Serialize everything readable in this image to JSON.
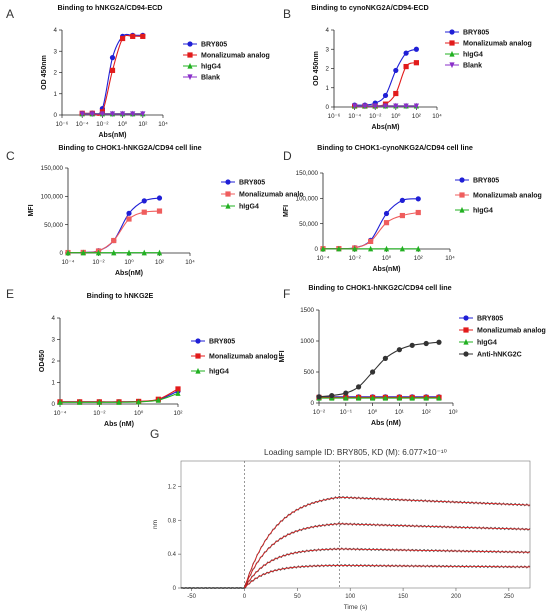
{
  "chart_data": [
    {
      "panel": "A",
      "type": "line",
      "title": "Binding to hNKG2A/CD94-ECD",
      "xlabel": "Abs(nM)",
      "ylabel": "OD 450nm",
      "x_scale": "log",
      "x_ticks": [
        "10⁻⁶",
        "10⁻⁴",
        "10⁻²",
        "10⁰",
        "10²",
        "10⁴"
      ],
      "y_ticks": [
        "0",
        "1",
        "2",
        "3",
        "4"
      ],
      "xlim": [
        1e-06,
        10000
      ],
      "ylim": [
        0,
        4
      ],
      "legend": "right",
      "series": [
        {
          "name": "BRY805",
          "color": "#1f1fd6",
          "marker": "circle",
          "x": [
            0.0001,
            0.001,
            0.01,
            0.1,
            1,
            10,
            100
          ],
          "y": [
            0.08,
            0.09,
            0.3,
            2.7,
            3.7,
            3.75,
            3.75
          ]
        },
        {
          "name": "Monalizumab analog",
          "color": "#e21b1b",
          "marker": "square",
          "x": [
            0.0001,
            0.001,
            0.01,
            0.1,
            1,
            10,
            100
          ],
          "y": [
            0.08,
            0.08,
            0.15,
            2.1,
            3.6,
            3.7,
            3.7
          ]
        },
        {
          "name": "hIgG4",
          "color": "#22b022",
          "marker": "triangle",
          "x": [
            0.0001,
            0.001,
            0.01,
            0.1,
            1,
            10,
            100
          ],
          "y": [
            0.06,
            0.06,
            0.06,
            0.06,
            0.06,
            0.06,
            0.06
          ]
        },
        {
          "name": "Blank",
          "color": "#8a2fc9",
          "marker": "triangle-down",
          "x": [
            0.0001,
            0.001,
            0.01,
            0.1,
            1,
            10,
            100
          ],
          "y": [
            0.05,
            0.05,
            0.05,
            0.05,
            0.05,
            0.05,
            0.05
          ]
        }
      ]
    },
    {
      "panel": "B",
      "type": "line",
      "title": "Binding to cynoNKG2A/CD94-ECD",
      "xlabel": "Abs(nM)",
      "ylabel": "OD 450nm",
      "x_scale": "log",
      "x_ticks": [
        "10⁻⁶",
        "10⁻⁴",
        "10⁻²",
        "10⁰",
        "10²",
        "10⁴"
      ],
      "y_ticks": [
        "0",
        "1",
        "2",
        "3",
        "4"
      ],
      "xlim": [
        1e-06,
        10000
      ],
      "ylim": [
        0,
        4
      ],
      "legend": "right",
      "series": [
        {
          "name": "BRY805",
          "color": "#1f1fd6",
          "marker": "circle",
          "x": [
            0.0001,
            0.001,
            0.01,
            0.1,
            1,
            10,
            100
          ],
          "y": [
            0.1,
            0.1,
            0.2,
            0.6,
            1.9,
            2.8,
            3.0
          ]
        },
        {
          "name": "Monalizumab analog",
          "color": "#e21b1b",
          "marker": "square",
          "x": [
            0.0001,
            0.001,
            0.01,
            0.1,
            1,
            10,
            100
          ],
          "y": [
            0.05,
            0.05,
            0.05,
            0.15,
            0.7,
            2.1,
            2.3
          ]
        },
        {
          "name": "hIgG4",
          "color": "#22b022",
          "marker": "triangle",
          "x": [
            0.0001,
            0.001,
            0.01,
            0.1,
            1,
            10,
            100
          ],
          "y": [
            0.06,
            0.06,
            0.06,
            0.06,
            0.06,
            0.06,
            0.06
          ]
        },
        {
          "name": "Blank",
          "color": "#8a2fc9",
          "marker": "triangle-down",
          "x": [
            0.0001,
            0.001,
            0.01,
            0.1,
            1,
            10,
            100
          ],
          "y": [
            0.05,
            0.05,
            0.05,
            0.05,
            0.05,
            0.05,
            0.05
          ]
        }
      ]
    },
    {
      "panel": "C",
      "type": "line",
      "title": "Binding to CHOK1-hNKG2A/CD94 cell line",
      "xlabel": "Abs(nM)",
      "ylabel": "MFI",
      "x_scale": "log",
      "x_ticks": [
        "10⁻⁴",
        "10⁻²",
        "10⁰",
        "10²",
        "10⁴"
      ],
      "y_ticks": [
        "0",
        "50,000",
        "100,000",
        "150,000"
      ],
      "xlim": [
        0.0001,
        10000
      ],
      "ylim": [
        0,
        150000
      ],
      "legend": "right",
      "series": [
        {
          "name": "BRY805",
          "color": "#1f1fd6",
          "marker": "circle",
          "x": [
            0.0001,
            0.001,
            0.01,
            0.1,
            1,
            10,
            100
          ],
          "y": [
            800,
            1000,
            4000,
            22000,
            70000,
            92000,
            97000
          ]
        },
        {
          "name": "Monalizumab analo",
          "color": "#ef5d5d",
          "marker": "square",
          "x": [
            0.0001,
            0.001,
            0.01,
            0.1,
            1,
            10,
            100
          ],
          "y": [
            800,
            1000,
            3500,
            22000,
            60000,
            72000,
            74000
          ]
        },
        {
          "name": "hIgG4",
          "color": "#22b022",
          "marker": "triangle",
          "x": [
            0.0001,
            0.001,
            0.01,
            0.1,
            1,
            10,
            100
          ],
          "y": [
            500,
            500,
            500,
            500,
            500,
            500,
            500
          ]
        }
      ]
    },
    {
      "panel": "D",
      "type": "line",
      "title": "Binding  to CHOK1-cynoNKG2A/CD94 cell line",
      "xlabel": "Abs(nM)",
      "ylabel": "MFI",
      "x_scale": "log",
      "x_ticks": [
        "10⁻⁴",
        "10⁻²",
        "10⁰",
        "10²",
        "10⁴"
      ],
      "y_ticks": [
        "0",
        "50,000",
        "100,000",
        "150,000"
      ],
      "xlim": [
        0.0001,
        10000
      ],
      "ylim": [
        0,
        150000
      ],
      "legend": "right",
      "series": [
        {
          "name": "BRY805",
          "color": "#1f1fd6",
          "marker": "circle",
          "x": [
            0.0001,
            0.001,
            0.01,
            0.1,
            1,
            10,
            100
          ],
          "y": [
            600,
            800,
            2500,
            17000,
            70000,
            96000,
            99000
          ]
        },
        {
          "name": "Monalizumab analog",
          "color": "#ef5d5d",
          "marker": "square",
          "x": [
            0.0001,
            0.001,
            0.01,
            0.1,
            1,
            10,
            100
          ],
          "y": [
            600,
            800,
            2000,
            15000,
            52000,
            66000,
            72000
          ]
        },
        {
          "name": "hIgG4",
          "color": "#22b022",
          "marker": "triangle",
          "x": [
            0.0001,
            0.001,
            0.01,
            0.1,
            1,
            10,
            100
          ],
          "y": [
            400,
            400,
            400,
            400,
            400,
            400,
            400
          ]
        }
      ]
    },
    {
      "panel": "E",
      "type": "line",
      "title": "Binding to hNKG2E",
      "xlabel": "Abs (nM)",
      "ylabel": "OD450",
      "x_scale": "log",
      "x_ticks": [
        "10⁻⁴",
        "10⁻²",
        "10⁰",
        "10²"
      ],
      "y_ticks": [
        "0",
        "1",
        "2",
        "3",
        "4"
      ],
      "xlim": [
        0.0001,
        100
      ],
      "ylim": [
        0,
        4
      ],
      "legend": "right",
      "series": [
        {
          "name": "BRY805",
          "color": "#1f1fd6",
          "marker": "circle",
          "x": [
            0.0001,
            0.001,
            0.01,
            0.1,
            1,
            10,
            100
          ],
          "y": [
            0.1,
            0.1,
            0.1,
            0.1,
            0.12,
            0.2,
            0.6
          ]
        },
        {
          "name": "Monalizumab analog",
          "color": "#e21b1b",
          "marker": "square",
          "x": [
            0.0001,
            0.001,
            0.01,
            0.1,
            1,
            10,
            100
          ],
          "y": [
            0.1,
            0.1,
            0.1,
            0.1,
            0.12,
            0.22,
            0.7
          ]
        },
        {
          "name": "hIgG4",
          "color": "#22b022",
          "marker": "triangle",
          "x": [
            0.0001,
            0.001,
            0.01,
            0.1,
            1,
            10,
            100
          ],
          "y": [
            0.08,
            0.08,
            0.08,
            0.08,
            0.1,
            0.18,
            0.5
          ]
        }
      ]
    },
    {
      "panel": "F",
      "type": "line",
      "title": "Binding to CHOK1-hNKG2C/CD94 cell line",
      "xlabel": "Abs (nM)",
      "ylabel": "MFI",
      "x_scale": "log",
      "x_ticks": [
        "10⁻²",
        "10⁻¹",
        "10⁰",
        "10¹",
        "10²",
        "10³"
      ],
      "y_ticks": [
        "0",
        "500",
        "1000",
        "1500"
      ],
      "xlim": [
        0.01,
        1000
      ],
      "ylim": [
        0,
        1500
      ],
      "legend": "right",
      "series": [
        {
          "name": "BRY805",
          "color": "#1f1fd6",
          "marker": "circle",
          "x": [
            0.01,
            0.03,
            0.1,
            0.3,
            1,
            3,
            10,
            30,
            100,
            300
          ],
          "y": [
            100,
            100,
            100,
            100,
            100,
            100,
            100,
            100,
            100,
            100
          ]
        },
        {
          "name": "Monalizumab analog",
          "color": "#e21b1b",
          "marker": "square",
          "x": [
            0.01,
            0.03,
            0.1,
            0.3,
            1,
            3,
            10,
            30,
            100,
            300
          ],
          "y": [
            90,
            90,
            90,
            90,
            90,
            90,
            90,
            90,
            90,
            90
          ]
        },
        {
          "name": "hIgG4",
          "color": "#22b022",
          "marker": "triangle",
          "x": [
            0.01,
            0.03,
            0.1,
            0.3,
            1,
            3,
            10,
            30,
            100,
            300
          ],
          "y": [
            80,
            80,
            80,
            80,
            80,
            80,
            80,
            80,
            80,
            80
          ]
        },
        {
          "name": "Anti-hNKG2C",
          "color": "#333333",
          "marker": "circle",
          "x": [
            0.01,
            0.03,
            0.1,
            0.3,
            1,
            3,
            10,
            30,
            100,
            300
          ],
          "y": [
            100,
            120,
            160,
            260,
            500,
            720,
            860,
            930,
            960,
            980
          ]
        }
      ]
    },
    {
      "panel": "G",
      "type": "line",
      "title": "Loading sample ID: BRY805, KD (M): 6.077×10⁻¹⁰",
      "xlabel": "Time (s)",
      "ylabel": "nm",
      "x_ticks": [
        "-50",
        "0",
        "50",
        "100",
        "150",
        "200",
        "250"
      ],
      "y_ticks": [
        "0",
        "0.4",
        "0.8",
        "1.2"
      ],
      "xlim": [
        -60,
        270
      ],
      "ylim": [
        0,
        1.5
      ],
      "association_end": 90,
      "series": [
        {
          "color": "#2a2a2a",
          "fit_color": "#e02020",
          "plateau": 1.12,
          "rate": 0.035,
          "off_rate": 0.0005
        },
        {
          "color": "#2a2a2a",
          "fit_color": "#e02020",
          "plateau": 0.78,
          "rate": 0.04,
          "off_rate": 0.0005
        },
        {
          "color": "#2a2a2a",
          "fit_color": "#e02020",
          "plateau": 0.47,
          "rate": 0.045,
          "off_rate": 0.0005
        },
        {
          "color": "#2a2a2a",
          "fit_color": "#e02020",
          "plateau": 0.27,
          "rate": 0.05,
          "off_rate": 0.0004
        }
      ]
    }
  ],
  "labels": {
    "A": "A",
    "B": "B",
    "C": "C",
    "D": "D",
    "E": "E",
    "F": "F",
    "G": "G"
  }
}
